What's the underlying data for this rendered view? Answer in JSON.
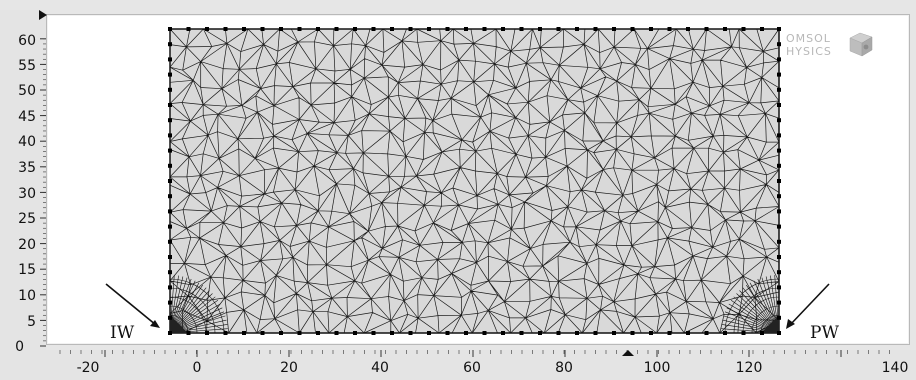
{
  "window": {
    "background": "#e4e4e4",
    "plot_background": "#ffffff",
    "mesh_fill": "#d9d9d9",
    "mesh_line": "#1a1a1a"
  },
  "axes": {
    "y_ticks": [
      "0",
      "5",
      "10",
      "15",
      "20",
      "25",
      "30",
      "35",
      "40",
      "45",
      "50",
      "55",
      "60"
    ],
    "x_ticks": [
      "-20",
      "0",
      "20",
      "40",
      "60",
      "80",
      "100",
      "120",
      "140"
    ]
  },
  "annotations": {
    "left_label": "IW",
    "right_label": "PW"
  },
  "logo": {
    "line1": "OMSOL",
    "line2": "HYSICS",
    "icon": "cube-icon"
  }
}
